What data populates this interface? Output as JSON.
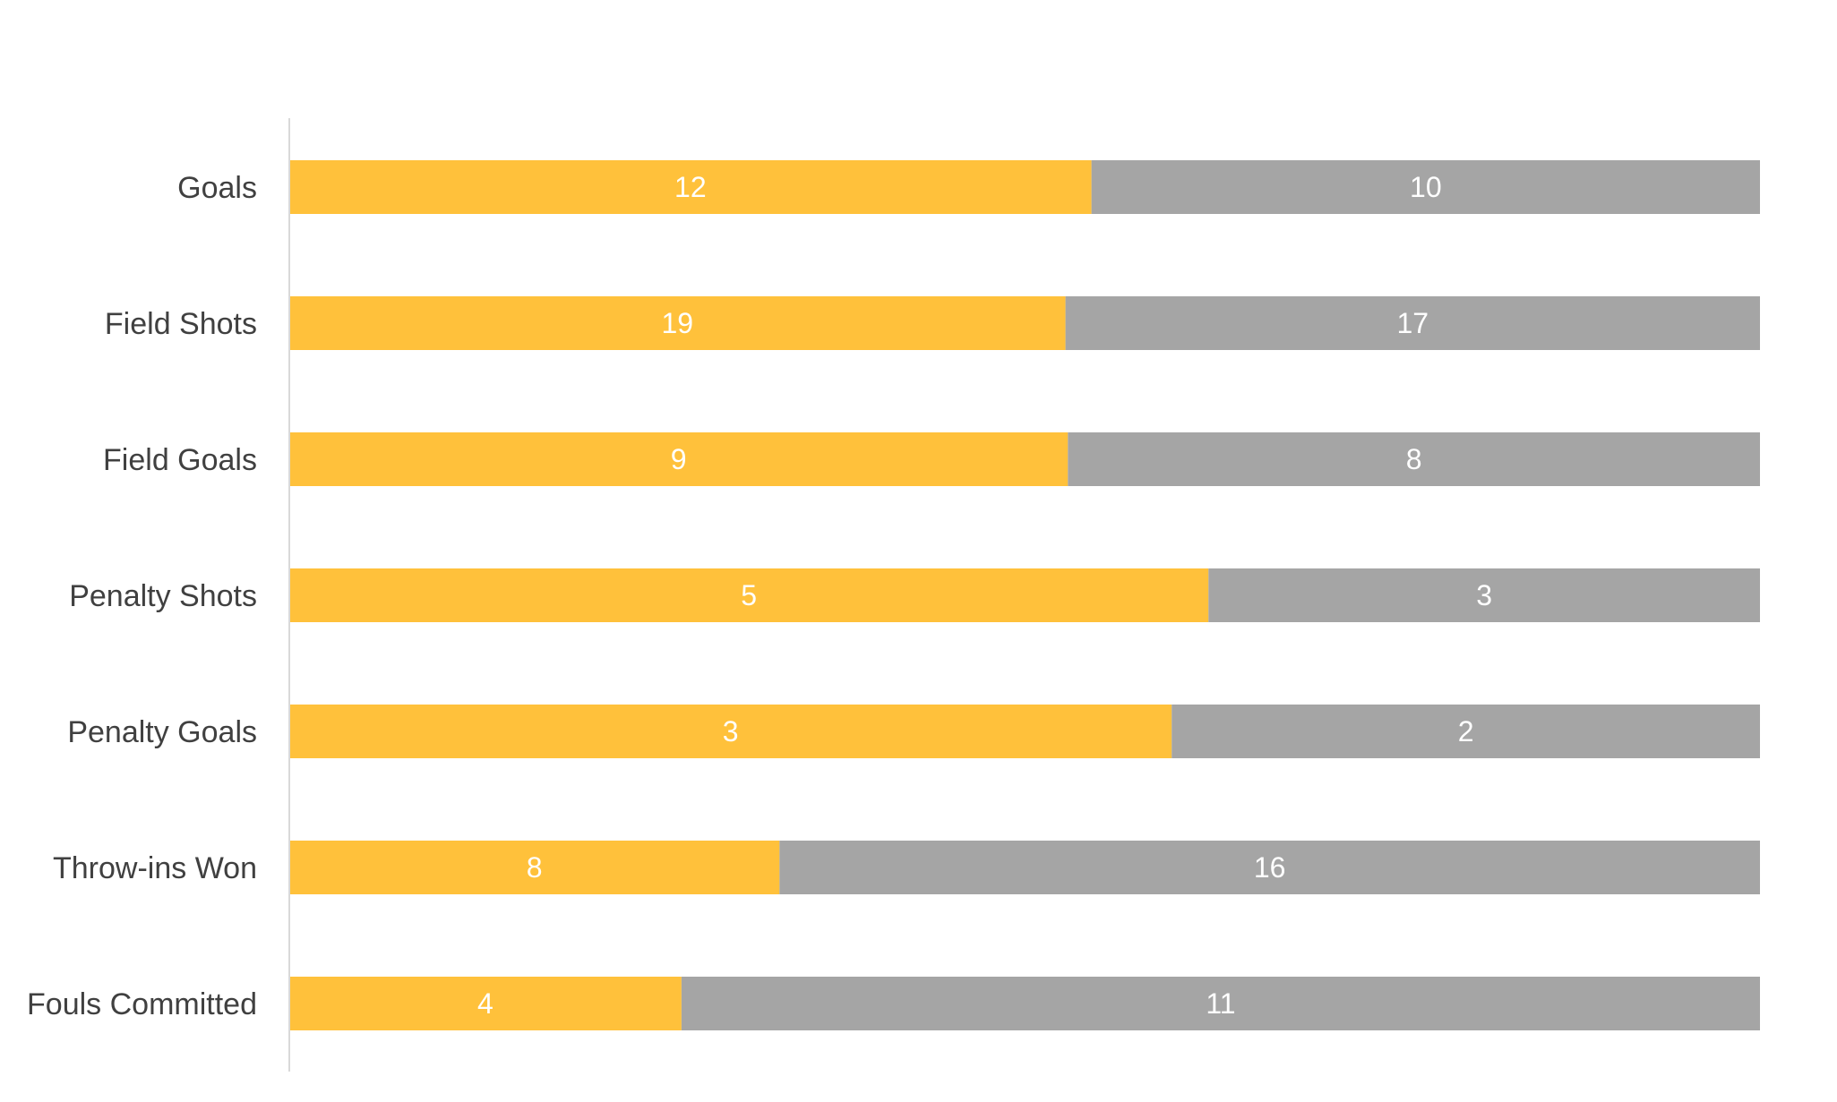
{
  "chart_data": {
    "type": "bar",
    "orientation": "horizontal",
    "stacking": "percent",
    "title": "",
    "xlabel": "",
    "ylabel": "",
    "grid": false,
    "legend": "none",
    "categories": [
      "Goals",
      "Field Shots",
      "Field Goals",
      "Penalty Shots",
      "Penalty Goals",
      "Throw-ins Won",
      "Fouls Committed"
    ],
    "series": [
      {
        "color": "#FFC13B",
        "values": [
          12,
          19,
          9,
          5,
          3,
          8,
          4
        ]
      },
      {
        "color": "#A5A5A5",
        "values": [
          10,
          17,
          8,
          3,
          2,
          16,
          11
        ]
      }
    ],
    "axis_color": "#D9D9D9",
    "label_color": "#404040",
    "data_label_color": "#FFFFFF"
  }
}
